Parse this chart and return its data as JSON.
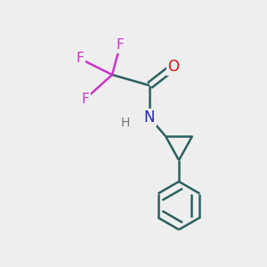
{
  "background_color": "#eeeeee",
  "bond_color": "#2a6060",
  "bond_width": 1.8,
  "F_color": "#cc33cc",
  "O_color": "#dd1111",
  "N_color": "#2222bb",
  "H_color": "#777777",
  "font_size_F": 11,
  "font_size_O": 12,
  "font_size_N": 12,
  "font_size_H": 10,
  "figsize": [
    3.0,
    3.0
  ],
  "dpi": 100,
  "xlim": [
    0,
    10
  ],
  "ylim": [
    0,
    10
  ]
}
